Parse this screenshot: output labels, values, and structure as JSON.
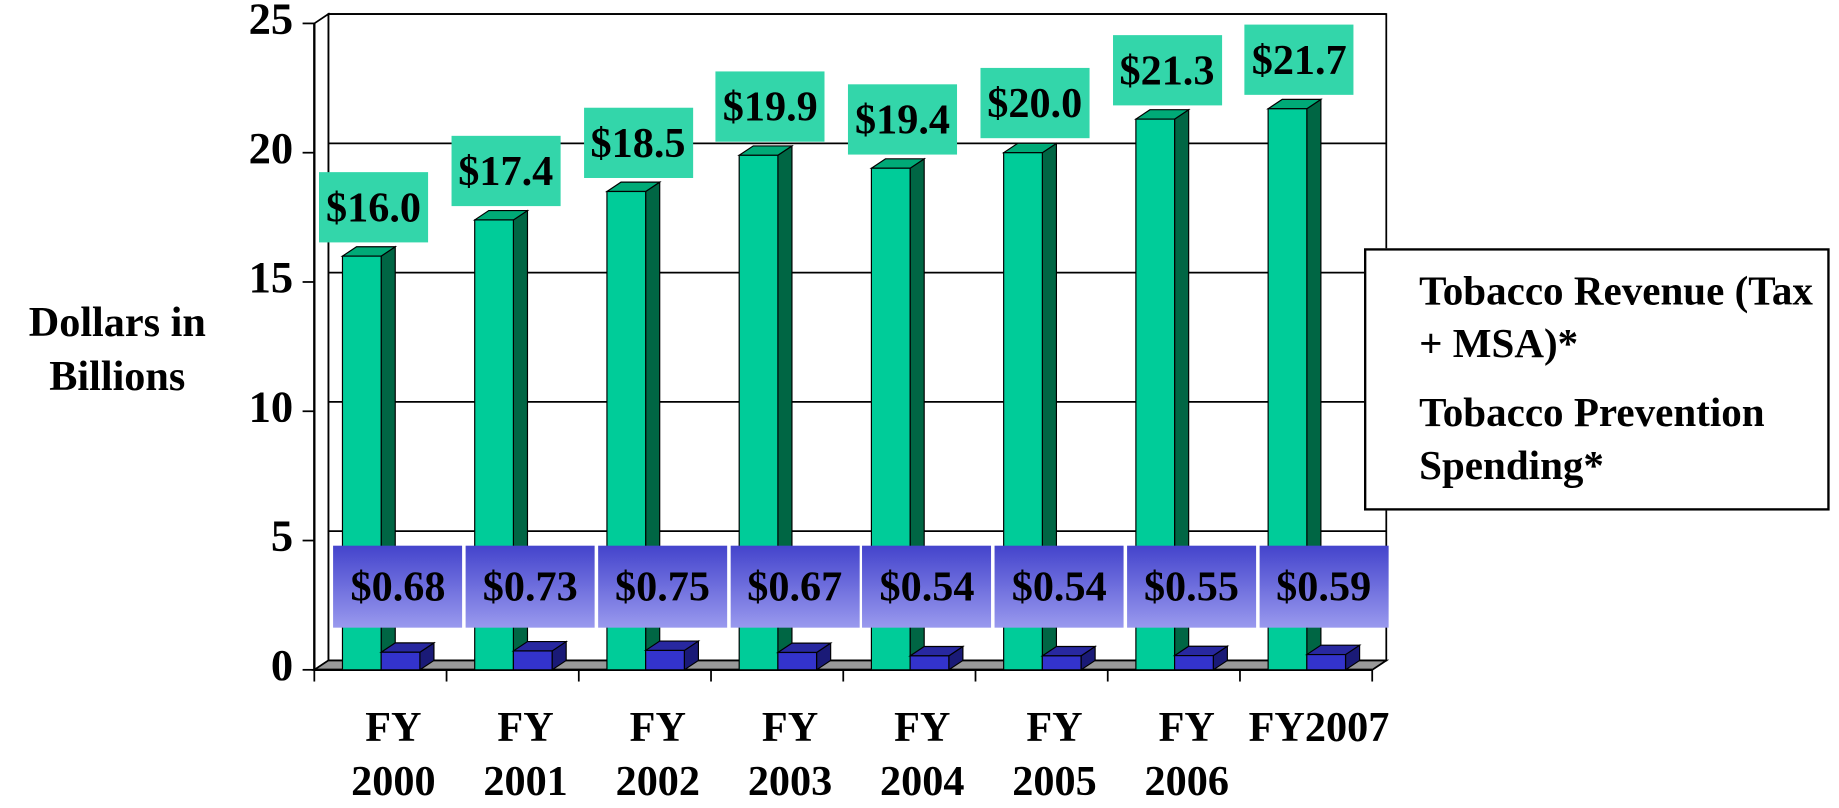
{
  "chart_data": {
    "type": "bar3d",
    "y_label": "Dollars in Billions",
    "categories": [
      "FY 2000",
      "FY 2001",
      "FY 2002",
      "FY 2003",
      "FY 2004",
      "FY 2005",
      "FY 2006",
      "FY2007"
    ],
    "series": [
      {
        "name": "Tobacco Revenue (Tax + MSA)*",
        "color": "#00cc99",
        "values": [
          16.0,
          17.4,
          18.5,
          19.9,
          19.4,
          20.0,
          21.3,
          21.7
        ],
        "value_labels": [
          "$16.0",
          "$17.4",
          "$18.5",
          "$19.9",
          "$19.4",
          "$20.0",
          "$21.3",
          "$21.7"
        ]
      },
      {
        "name": "Tobacco Prevention Spending*",
        "color": "#3333cc",
        "values": [
          0.68,
          0.73,
          0.75,
          0.67,
          0.54,
          0.54,
          0.55,
          0.59
        ],
        "value_labels": [
          "$0.68",
          "$0.73",
          "$0.75",
          "$0.67",
          "$0.54",
          "$0.54",
          "$0.55",
          "$0.59"
        ]
      }
    ],
    "ylim": [
      0,
      25
    ],
    "yticks": [
      0,
      5,
      10,
      15,
      20,
      25
    ],
    "grid": true,
    "legend": "right"
  }
}
